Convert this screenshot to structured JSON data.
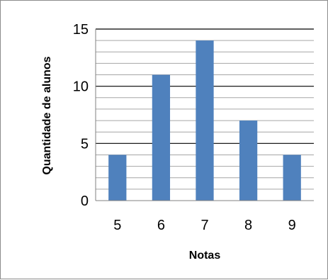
{
  "chart_data": {
    "type": "bar",
    "categories": [
      "5",
      "6",
      "7",
      "8",
      "9"
    ],
    "values": [
      4,
      11,
      14,
      7,
      4
    ],
    "xlabel": "Notas",
    "ylabel": "Quantidade de alunos",
    "ylim": [
      0,
      15
    ],
    "yticks": [
      "0",
      "5",
      "10",
      "15"
    ],
    "major_grid": [
      5,
      10,
      15
    ],
    "minor_grid_step": 1,
    "legend": "none",
    "colors": {
      "bar": "#4f81bd",
      "major_grid": "#000000",
      "minor_grid": "#a6a6a6",
      "axis": "#808080"
    }
  }
}
